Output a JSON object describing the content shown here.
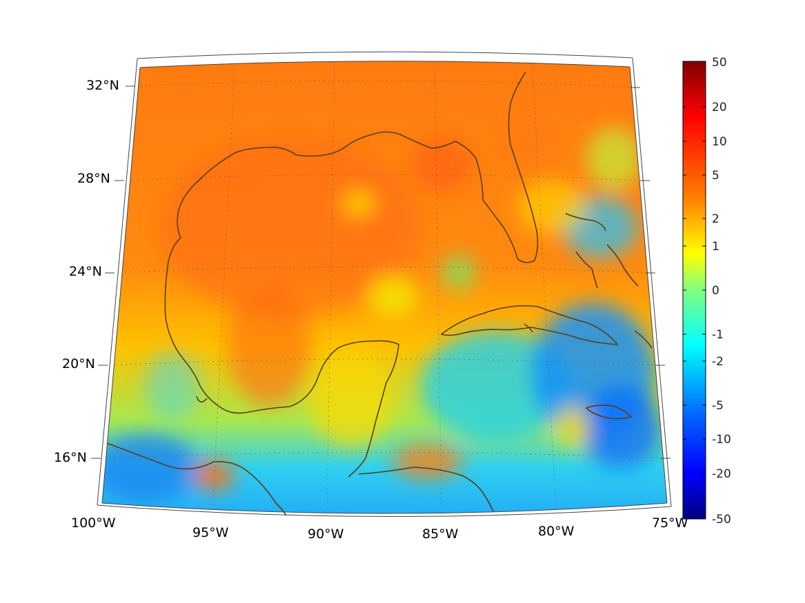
{
  "map": {
    "projection": "conic",
    "longitude_labels": [
      "100°W",
      "95°W",
      "90°W",
      "85°W",
      "80°W",
      "75°W"
    ],
    "latitude_labels": [
      "32°N",
      "28°N",
      "24°N",
      "20°N",
      "16°N"
    ],
    "gridlines": "dotted",
    "coastline_color": "#5a3e12",
    "field_colormap": "jet"
  },
  "colorbar": {
    "tick_labels": [
      "50",
      "20",
      "10",
      "5",
      "2",
      "1",
      "0",
      "-1",
      "-2",
      "-5",
      "-10",
      "-20",
      "-50"
    ],
    "colors": [
      "#800000",
      "#ff0000",
      "#ff8000",
      "#ffff00",
      "#00ffff",
      "#0000ff",
      "#000080"
    ],
    "scale": "symmetric-log"
  }
}
